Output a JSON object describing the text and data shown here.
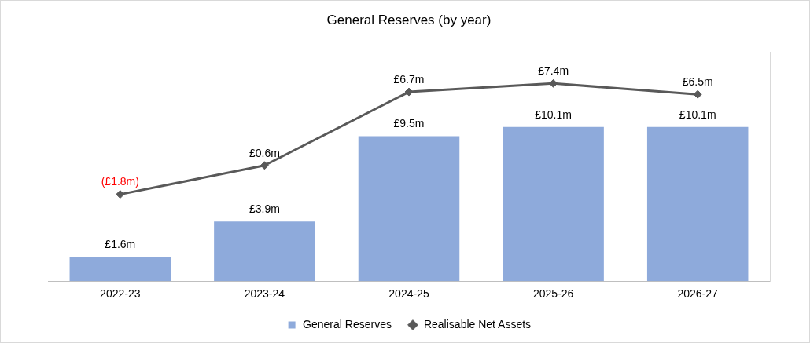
{
  "chart_data": {
    "type": "bar",
    "title": "General Reserves (by year)",
    "categories": [
      "2022-23",
      "2023-24",
      "2024-25",
      "2025-26",
      "2026-27"
    ],
    "series": [
      {
        "name": "General Reserves",
        "color": "#8eaadb",
        "values": [
          1.6,
          3.9,
          9.5,
          10.1,
          10.1
        ],
        "value_labels": [
          "£1.6m",
          "£3.9m",
          "£9.5m",
          "£10.1m",
          "£10.1m"
        ]
      },
      {
        "name": "Realisable Net Assets",
        "type": "line",
        "axis": "y2",
        "color": "#595959",
        "marker": "diamond",
        "values": [
          -1.8,
          0.6,
          6.7,
          7.4,
          6.5
        ],
        "value_labels": [
          "(£1.8m)",
          "£0.6m",
          "£6.7m",
          "£7.4m",
          "£6.5m"
        ]
      }
    ],
    "ylim": [
      0,
      15
    ],
    "y2lim": [
      -9,
      10
    ],
    "tick_labels": "x",
    "grid": false,
    "legend": "bottom"
  }
}
